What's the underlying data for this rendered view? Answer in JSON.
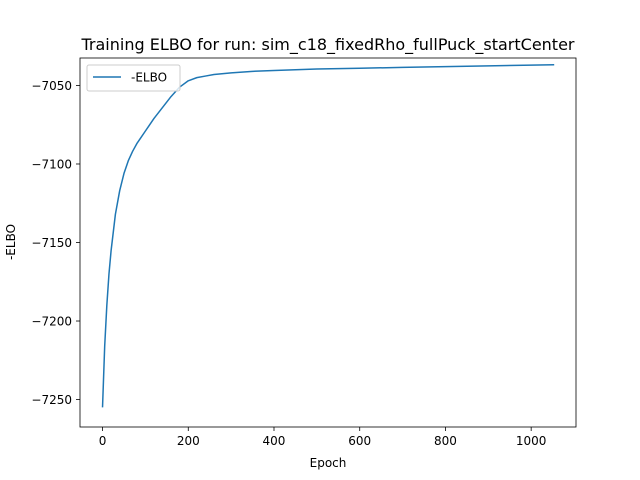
{
  "chart_data": {
    "type": "line",
    "title": "Training ELBO for run: sim_c18_fixedRho_fullPuck_startCenter",
    "xlabel": "Epoch",
    "ylabel": "-ELBO",
    "xlim": [
      -52.6,
      1104.6
    ],
    "ylim": [
      -7267.5,
      -7032.5
    ],
    "xticks": [
      0,
      200,
      400,
      600,
      800,
      1000
    ],
    "yticks": [
      -7250,
      -7200,
      -7150,
      -7100,
      -7050
    ],
    "xtick_labels": [
      "0",
      "200",
      "400",
      "600",
      "800",
      "1000"
    ],
    "ytick_labels": [
      "−7250",
      "−7200",
      "−7150",
      "−7100",
      "−7050"
    ],
    "grid": false,
    "legend_position": "top-left",
    "series": [
      {
        "name": "-ELBO",
        "color": "#1f77b4",
        "x": [
          0,
          5,
          10,
          15,
          20,
          30,
          40,
          50,
          60,
          70,
          80,
          90,
          100,
          120,
          140,
          160,
          180,
          200,
          220,
          240,
          260,
          300,
          350,
          400,
          450,
          500,
          600,
          700,
          800,
          900,
          1000,
          1052
        ],
        "y": [
          -7254.5,
          -7216,
          -7190,
          -7170,
          -7155,
          -7132,
          -7117,
          -7106,
          -7098,
          -7092,
          -7087,
          -7083,
          -7079,
          -7071,
          -7064,
          -7057,
          -7051,
          -7047,
          -7045,
          -7044,
          -7043,
          -7042,
          -7041,
          -7040.5,
          -7040,
          -7039.5,
          -7039,
          -7038.5,
          -7038,
          -7037.5,
          -7037,
          -7036.8
        ]
      }
    ]
  }
}
